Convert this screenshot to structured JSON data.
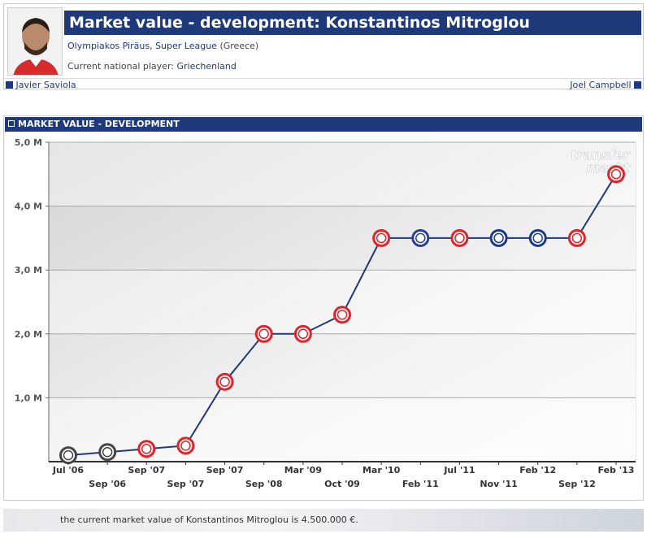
{
  "header": {
    "title": "Market value - development: Konstantinos Mitroglou",
    "club": "Olympiakos Piräus, Super League",
    "league_country": "(Greece)",
    "national_label": "Current national player:",
    "national_team": "Griechenland",
    "prev_player": "Javier Saviola",
    "next_player": "Joel Campbell"
  },
  "panel_title": "MARKET VALUE - DEVELOPMENT",
  "chart_data": {
    "type": "line",
    "watermark": [
      "transfer",
      "markt"
    ],
    "categories": [
      "Jul '06",
      "Sep '06",
      "Sep '07",
      "Sep '07",
      "Sep '07",
      "Sep '08",
      "Mar '09",
      "Oct '09",
      "Mar '10",
      "Feb '11",
      "Jul '11",
      "Nov '11",
      "Feb '12",
      "Sep '12",
      "Feb '13"
    ],
    "series": [
      {
        "name": "Market value",
        "color": "#1f3a7a",
        "values": [
          0.1,
          0.15,
          0.2,
          0.25,
          1.25,
          2.0,
          2.0,
          2.3,
          3.5,
          3.5,
          3.5,
          3.5,
          3.5,
          3.5,
          4.5
        ],
        "marker_colors": [
          "#444444",
          "#444444",
          "#e0242a",
          "#e0242a",
          "#e0242a",
          "#e0242a",
          "#e0242a",
          "#e0242a",
          "#e0242a",
          "#2b3f8f",
          "#e0242a",
          "#1d3a8a",
          "#1d3a8a",
          "#e0242a",
          "#e0242a"
        ]
      }
    ],
    "ylim": [
      0,
      5
    ],
    "yticks": [
      {
        "value": 1,
        "label": "1,0 M"
      },
      {
        "value": 2,
        "label": "2,0 M"
      },
      {
        "value": 3,
        "label": "3,0 M"
      },
      {
        "value": 4,
        "label": "4,0 M"
      },
      {
        "value": 5,
        "label": "5,0 M"
      }
    ],
    "grid": true
  },
  "footer": "the current market value of Konstantinos Mitroglou is 4.500.000 €."
}
